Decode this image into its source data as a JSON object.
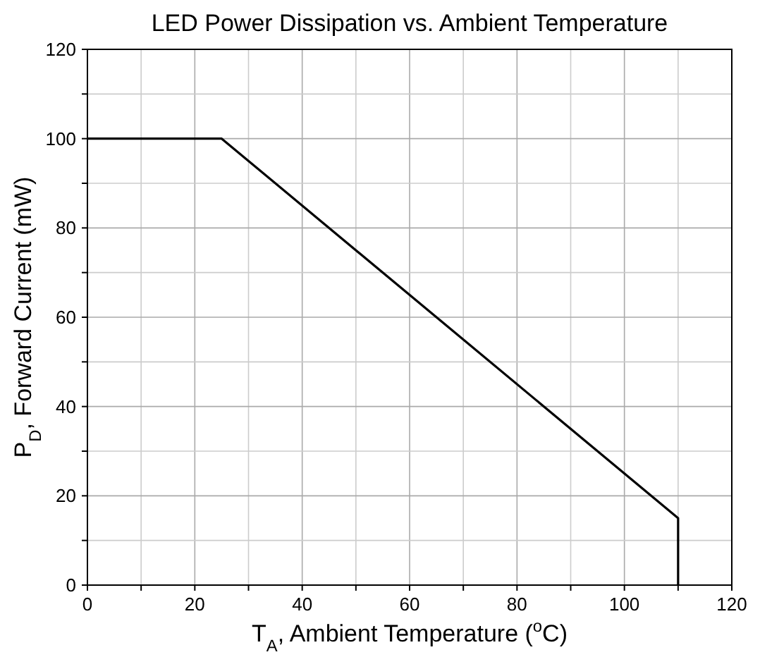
{
  "chart_data": {
    "type": "line",
    "title": "LED Power Dissipation vs. Ambient Temperature",
    "xlabel": "T$_{A}$, Ambient Temperature ($^{o}$C)",
    "ylabel": "P$_{D}$, Forward Current (mW)",
    "x": [
      0,
      25,
      110,
      110
    ],
    "series": [
      {
        "color": "#000000",
        "values": [
          100,
          100,
          15,
          0
        ]
      }
    ],
    "xlim": [
      0,
      120
    ],
    "xticks": [
      0,
      {
        "value": 10,
        "label": null
      },
      20,
      {
        "value": 30,
        "label": null
      },
      40,
      {
        "value": 50,
        "label": null
      },
      60,
      {
        "value": 70,
        "label": null
      },
      80,
      {
        "value": 90,
        "label": null
      },
      100,
      {
        "value": 110,
        "label": null
      },
      120
    ],
    "ylim": [
      0,
      120
    ],
    "yticks": [
      0,
      {
        "value": 10,
        "label": null
      },
      20,
      {
        "value": 30,
        "label": null
      },
      40,
      {
        "value": 50,
        "label": null
      },
      60,
      {
        "value": 70,
        "label": null
      },
      80,
      {
        "value": 90,
        "label": null
      },
      100,
      {
        "value": 110,
        "label": null
      },
      120
    ],
    "grid": true,
    "marker": "none",
    "line_style": "solid"
  }
}
